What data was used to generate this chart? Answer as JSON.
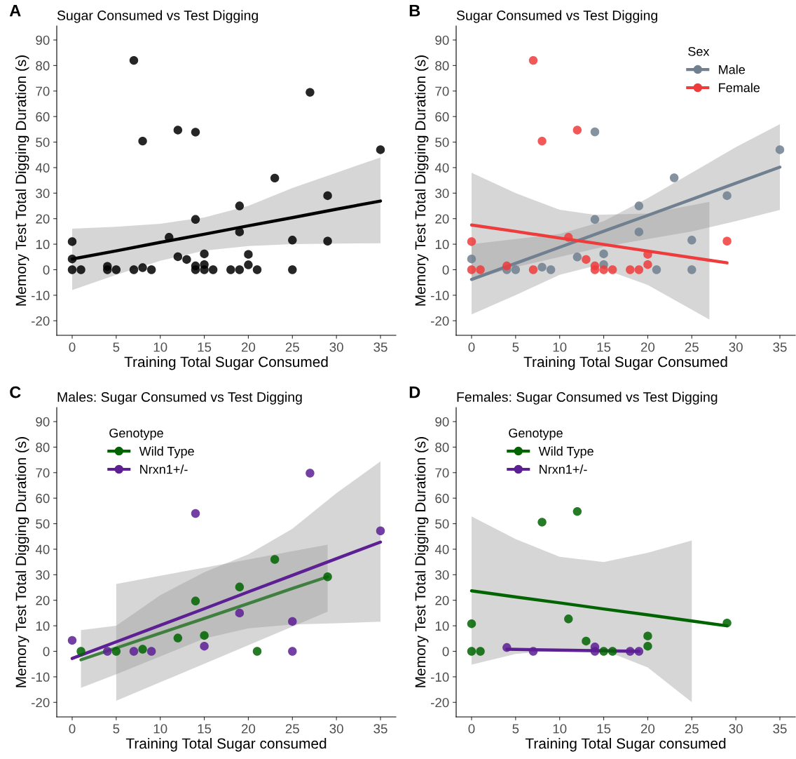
{
  "chart_data": [
    {
      "type": "scatter",
      "title": "Sugar Consumed vs Test Digging",
      "xlabel": "Training Total Sugar Consumed",
      "ylabel": "Memory Test Total Digging Duration (s)",
      "annotations": [
        "A"
      ],
      "xlim": [
        -1.75,
        36.75
      ],
      "ylim": [
        -25.7,
        95.5
      ],
      "xticks": [
        0,
        5,
        10,
        15,
        20,
        25,
        30,
        35
      ],
      "yticks": [
        -20,
        -10,
        0,
        10,
        20,
        30,
        40,
        50,
        60,
        70,
        80,
        90
      ],
      "grid": false,
      "marker": "circle",
      "series": [
        {
          "color": "#000000",
          "x": [
            0,
            0,
            0,
            1,
            4,
            4,
            5,
            7,
            7,
            8,
            8,
            9,
            11,
            12,
            12,
            13,
            14,
            14,
            14,
            14,
            15,
            15,
            15,
            16,
            18,
            19,
            19,
            19,
            20,
            20,
            21,
            23,
            25,
            25,
            27,
            29,
            29,
            35
          ],
          "values": [
            11,
            4.2,
            0,
            0,
            1.3,
            0,
            0,
            82,
            0,
            50.4,
            0.8,
            0,
            12.7,
            54.7,
            5.1,
            4,
            53.9,
            19.7,
            1.5,
            0,
            6.2,
            2,
            0,
            0,
            0,
            25,
            14.8,
            0,
            6,
            1.9,
            0,
            35.9,
            11.6,
            0,
            69.5,
            29,
            11.2,
            47
          ]
        },
        {
          "type": "line",
          "marker": "none",
          "color": "#000000",
          "x": [
            0,
            5,
            10,
            15,
            20,
            25,
            30,
            35
          ],
          "values": [
            4.2,
            7.4,
            10.7,
            13.9,
            17.2,
            20.4,
            23.7,
            26.9
          ],
          "lower": [
            -8,
            -2,
            3.5,
            7.5,
            9.3,
            10,
            10.2,
            10.4
          ],
          "upper": [
            16.1,
            16.8,
            18,
            20.5,
            25,
            32,
            38,
            44
          ]
        }
      ]
    },
    {
      "type": "scatter",
      "title": "Sugar Consumed vs Test Digging",
      "xlabel": "Training Total Sugar Consumed",
      "ylabel": "Memory Test Total Digging Duration (s)",
      "annotations": [
        "B"
      ],
      "legend_title": "Sex",
      "legend": "top right",
      "xlim": [
        -1.75,
        36.75
      ],
      "ylim": [
        -25.7,
        95.5
      ],
      "xticks": [
        0,
        5,
        10,
        15,
        20,
        25,
        30,
        35
      ],
      "yticks": [
        -20,
        -10,
        0,
        10,
        20,
        30,
        40,
        50,
        60,
        70,
        80,
        90
      ],
      "grid": false,
      "marker": "circle",
      "series": [
        {
          "name": "Male",
          "color": "#708090",
          "x": [
            0,
            4,
            5,
            8,
            9,
            12,
            14,
            14,
            15,
            15,
            19,
            19,
            21,
            23,
            25,
            25,
            29,
            35
          ],
          "values": [
            4.2,
            0,
            0,
            1,
            0,
            5,
            54,
            19.7,
            6.2,
            2,
            25,
            14.8,
            0,
            36,
            11.6,
            0,
            29,
            47
          ]
        },
        {
          "name": "Female",
          "color": "#ee3b3b",
          "x": [
            0,
            0,
            1,
            4,
            7,
            7,
            8,
            11,
            12,
            13,
            14,
            14,
            15,
            16,
            18,
            19,
            20,
            20,
            29
          ],
          "values": [
            11,
            0,
            0,
            1.5,
            82,
            0,
            50.4,
            12.7,
            54.7,
            4,
            1.5,
            0,
            0,
            0,
            0,
            0,
            6,
            2,
            11.2
          ]
        },
        {
          "type": "line",
          "marker": "none",
          "color": "#708090",
          "x": [
            0,
            5,
            10,
            15,
            20,
            25,
            30,
            35
          ],
          "values": [
            -3.8,
            2.5,
            8.8,
            15.1,
            21.3,
            27.6,
            33.9,
            40.2
          ],
          "lower": [
            -4,
            1,
            5,
            9,
            12,
            15,
            19,
            23.4
          ],
          "upper": [
            10,
            12,
            14,
            19,
            28,
            38,
            48,
            57
          ]
        },
        {
          "type": "line",
          "marker": "none",
          "color": "#ee3b3b",
          "x": [
            0,
            5,
            10,
            14,
            20,
            27,
            29
          ],
          "values": [
            17.5,
            15,
            12.4,
            10.4,
            7.3,
            3.7,
            2.7
          ],
          "lower": [
            -17.5,
            -10,
            -2,
            1.5,
            -6,
            -19.5,
            null
          ],
          "upper": [
            38,
            30,
            23.5,
            21.5,
            22,
            26.6,
            null
          ]
        }
      ]
    },
    {
      "type": "scatter",
      "title": "Males: Sugar Consumed vs Test Digging",
      "xlabel": "Training Total Sugar consumed",
      "ylabel": "Memory Test Total Digging Duration (s)",
      "annotations": [
        "C"
      ],
      "legend_title": "Genotype",
      "legend": "top left",
      "xlim": [
        -1.75,
        36.75
      ],
      "ylim": [
        -25.7,
        95.5
      ],
      "xticks": [
        0,
        5,
        10,
        15,
        20,
        25,
        30,
        35
      ],
      "yticks": [
        -20,
        -10,
        0,
        10,
        20,
        30,
        40,
        50,
        60,
        70,
        80,
        90
      ],
      "grid": false,
      "marker": "circle",
      "series": [
        {
          "name": "Wild Type",
          "color": "#006400",
          "x": [
            1,
            5,
            8,
            12,
            14,
            15,
            19,
            21,
            23,
            29
          ],
          "values": [
            0,
            0,
            0.8,
            5.2,
            19.7,
            6.2,
            25.2,
            0,
            36,
            29.2
          ]
        },
        {
          "name": "Nrxn1+/-",
          "color": "#5d1f94",
          "x": [
            0,
            4,
            7,
            9,
            14,
            15,
            19,
            25,
            25,
            27,
            35
          ],
          "values": [
            4.3,
            0,
            0,
            0,
            54,
            2,
            15,
            11.7,
            0,
            69.8,
            47.2
          ]
        },
        {
          "type": "line",
          "marker": "none",
          "color": "#3f7f3f",
          "x": [
            1,
            5,
            10,
            15,
            20,
            25,
            29
          ],
          "values": [
            -3.3,
            1.3,
            7.1,
            12.9,
            18.7,
            24.6,
            29.2
          ],
          "lower": [
            null,
            -19.4,
            -12.1,
            -4.9,
            2.4,
            9.7,
            15.5
          ],
          "upper": [
            null,
            26.4,
            29.6,
            32.8,
            36,
            39.2,
            41.8
          ]
        },
        {
          "type": "line",
          "marker": "none",
          "color": "#5d1f94",
          "x": [
            0,
            1,
            5,
            10,
            15,
            20,
            25,
            30,
            35
          ],
          "values": [
            -2.8,
            -1.5,
            3.7,
            10.2,
            16.7,
            23.3,
            29.8,
            36.3,
            42.8
          ],
          "lower": [
            null,
            -14.3,
            -9,
            -2,
            5,
            9,
            10.5,
            11,
            11.6
          ],
          "upper": [
            null,
            8.3,
            10,
            22,
            31,
            38,
            48,
            62,
            74.4
          ]
        }
      ]
    },
    {
      "type": "scatter",
      "title": "Females: Sugar Consumed vs Test Digging",
      "xlabel": "Training Total Sugar consumed",
      "ylabel": "Memory Test Total Digging Duration (s)",
      "annotations": [
        "D"
      ],
      "legend_title": "Genotype",
      "legend": "top left",
      "xlim": [
        -1.75,
        36.75
      ],
      "ylim": [
        -25.7,
        95.5
      ],
      "xticks": [
        0,
        5,
        10,
        15,
        20,
        25,
        30,
        35
      ],
      "yticks": [
        -20,
        -10,
        0,
        10,
        20,
        30,
        40,
        50,
        60,
        70,
        80,
        90
      ],
      "grid": false,
      "marker": "circle",
      "series": [
        {
          "name": "Wild Type",
          "color": "#006400",
          "x": [
            0,
            0,
            1,
            8,
            11,
            12,
            13,
            15,
            16,
            20,
            20,
            29
          ],
          "values": [
            10.8,
            0,
            0,
            50.6,
            12.7,
            54.8,
            4,
            0,
            0,
            6,
            2,
            11.1
          ]
        },
        {
          "name": "Nrxn1+/-",
          "color": "#5d1f94",
          "x": [
            4,
            7,
            14,
            14,
            18,
            19
          ],
          "values": [
            1.5,
            0,
            1.7,
            0,
            0,
            0
          ]
        },
        {
          "type": "line",
          "marker": "none",
          "color": "#006400",
          "x": [
            0,
            5,
            10,
            15,
            20,
            25,
            29
          ],
          "values": [
            23.7,
            21.3,
            19,
            16.6,
            14.3,
            11.9,
            10
          ],
          "lower": [
            -5.2,
            -1,
            0.5,
            0.5,
            -6.3,
            -19.9,
            null
          ],
          "upper": [
            52.8,
            44,
            37,
            35,
            38.6,
            43.4,
            null
          ]
        },
        {
          "type": "line",
          "marker": "none",
          "color": "#5d1f94",
          "x": [
            4,
            19
          ],
          "values": [
            0.8,
            0
          ]
        }
      ]
    }
  ]
}
